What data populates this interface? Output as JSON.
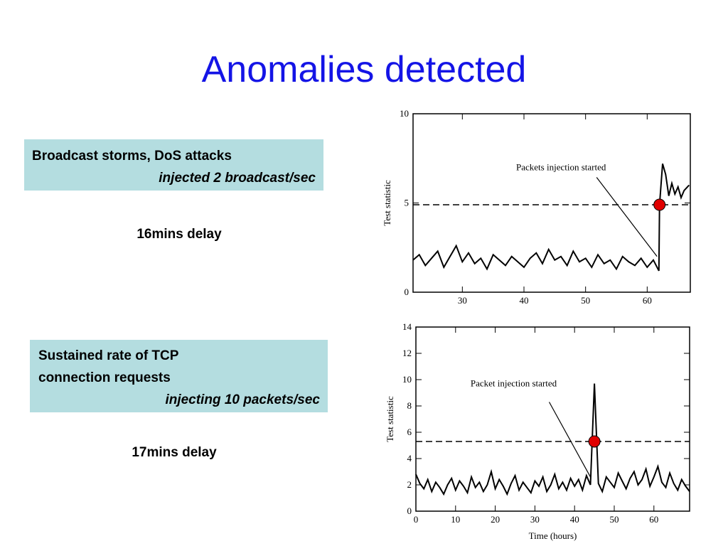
{
  "title": "Anomalies detected",
  "panels": [
    {
      "box": [
        "Broadcast storms, DoS attacks"
      ],
      "detail": "injected 2 broadcast/sec",
      "delay": "16mins delay"
    },
    {
      "box": [
        "Sustained rate of TCP",
        "connection requests"
      ],
      "detail": "injecting 10 packets/sec",
      "delay": "17mins delay"
    }
  ],
  "chart_data": [
    {
      "type": "line",
      "ylabel": "Test statistic",
      "x": [
        22,
        23,
        24,
        25,
        26,
        27,
        28,
        29,
        30,
        31,
        32,
        33,
        34,
        35,
        36,
        37,
        38,
        39,
        40,
        41,
        42,
        43,
        44,
        45,
        46,
        47,
        48,
        49,
        50,
        51,
        52,
        53,
        54,
        55,
        56,
        57,
        58,
        59,
        60,
        61,
        61.9,
        62,
        62.5,
        63,
        63.5,
        64,
        64.5,
        65,
        65.5,
        66,
        66.8
      ],
      "values": [
        1.8,
        2.1,
        1.5,
        1.9,
        2.3,
        1.4,
        2.0,
        2.6,
        1.7,
        2.2,
        1.6,
        1.9,
        1.3,
        2.1,
        1.8,
        1.5,
        2.0,
        1.7,
        1.4,
        1.9,
        2.2,
        1.6,
        2.4,
        1.8,
        2.0,
        1.5,
        2.3,
        1.7,
        1.9,
        1.4,
        2.1,
        1.6,
        1.8,
        1.3,
        2.0,
        1.7,
        1.5,
        1.9,
        1.4,
        1.8,
        1.2,
        4.9,
        7.2,
        6.6,
        5.4,
        6.1,
        5.5,
        5.9,
        5.3,
        5.7,
        6.0
      ],
      "color": "#000000",
      "xlim": [
        22,
        67
      ],
      "ylim": [
        0,
        10
      ],
      "xticks": [
        30,
        40,
        50,
        60
      ],
      "yticks": [
        0,
        5,
        10
      ],
      "threshold": 4.9,
      "alarm": {
        "x": 62,
        "y": 4.9,
        "color": "#e00000"
      },
      "annotation": {
        "text": "Packets injection started",
        "x": 61.6,
        "y": 2.0
      }
    },
    {
      "type": "line",
      "ylabel": "Test statistic",
      "xlabel": "Time (hours)",
      "x": [
        0,
        1,
        2,
        3,
        4,
        5,
        6,
        7,
        8,
        9,
        10,
        11,
        12,
        13,
        14,
        15,
        16,
        17,
        18,
        19,
        20,
        21,
        22,
        23,
        24,
        25,
        26,
        27,
        28,
        29,
        30,
        31,
        32,
        33,
        34,
        35,
        36,
        37,
        38,
        39,
        40,
        41,
        42,
        43,
        44,
        45,
        46,
        47,
        48,
        49,
        50,
        51,
        52,
        53,
        54,
        55,
        56,
        57,
        58,
        59,
        60,
        61,
        62,
        63,
        64,
        65,
        66,
        67,
        68,
        69
      ],
      "values": [
        2.8,
        2.1,
        1.7,
        2.4,
        1.5,
        2.2,
        1.8,
        1.3,
        2.0,
        2.5,
        1.6,
        2.3,
        1.9,
        1.4,
        2.6,
        1.8,
        2.2,
        1.5,
        2.0,
        3.0,
        1.7,
        2.4,
        1.9,
        1.3,
        2.1,
        2.7,
        1.6,
        2.2,
        1.8,
        1.4,
        2.3,
        1.9,
        2.6,
        1.5,
        2.0,
        2.8,
        1.7,
        2.2,
        1.6,
        2.5,
        1.9,
        2.4,
        1.6,
        2.7,
        2.0,
        9.7,
        2.1,
        1.5,
        2.6,
        2.2,
        1.8,
        2.9,
        2.3,
        1.7,
        2.5,
        3.0,
        2.0,
        2.4,
        3.2,
        1.9,
        2.6,
        3.4,
        2.2,
        1.8,
        2.9,
        2.1,
        1.6,
        2.4,
        1.9,
        1.5
      ],
      "color": "#000000",
      "xlim": [
        0,
        69
      ],
      "ylim": [
        0,
        14
      ],
      "xticks": [
        0,
        10,
        20,
        30,
        40,
        50,
        60
      ],
      "yticks": [
        0,
        2,
        4,
        6,
        8,
        10,
        12,
        14
      ],
      "threshold": 5.3,
      "alarm": {
        "x": 45,
        "y": 5.3,
        "color": "#e00000"
      },
      "annotation": {
        "text": "Packet injection started",
        "x": 44,
        "y": 2.6
      }
    }
  ]
}
